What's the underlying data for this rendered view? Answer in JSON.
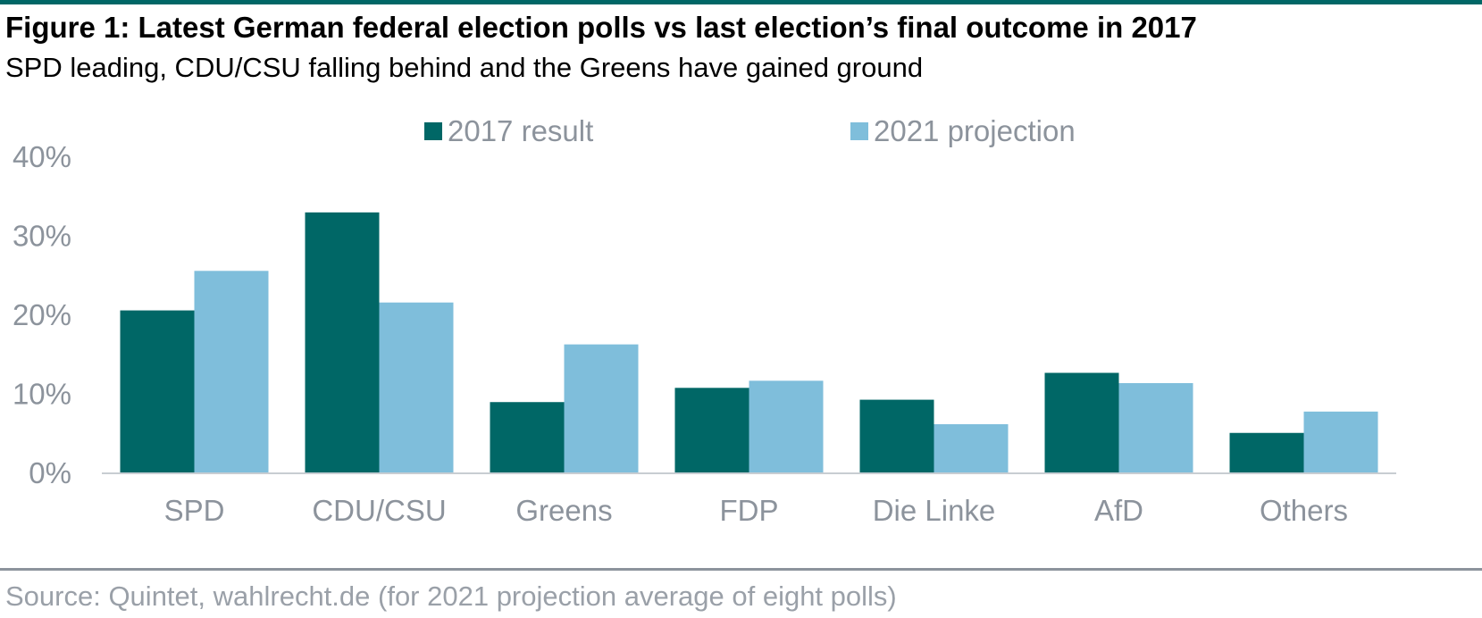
{
  "title": "Figure 1: Latest German federal election polls vs last election’s final outcome in 2017",
  "subtitle": "SPD leading, CDU/CSU falling behind and the Greens have gained ground",
  "source": "Source: Quintet, wahlrecht.de (for 2021 projection average of eight polls)",
  "colors": {
    "accent_rule": "#006766",
    "series_2017": "#006766",
    "series_2021": "#7fbedb",
    "axis_text": "#8c939c",
    "baseline": "#c8cdd2"
  },
  "chart_data": {
    "type": "bar",
    "categories": [
      "SPD",
      "CDU/CSU",
      "Greens",
      "FDP",
      "Die Linke",
      "AfD",
      "Others"
    ],
    "series": [
      {
        "name": "2017 result",
        "values": [
          20.5,
          32.9,
          8.9,
          10.7,
          9.2,
          12.6,
          5.0
        ]
      },
      {
        "name": "2021 projection",
        "values": [
          25.5,
          21.5,
          16.2,
          11.6,
          6.1,
          11.3,
          7.7
        ]
      }
    ],
    "ylim": [
      0,
      40
    ],
    "yticks": [
      0,
      10,
      20,
      30,
      40
    ],
    "ytick_labels": [
      "0%",
      "10%",
      "20%",
      "30%",
      "40%"
    ],
    "xlabel": "",
    "ylabel": "",
    "grid": false,
    "legend": "top-center"
  }
}
